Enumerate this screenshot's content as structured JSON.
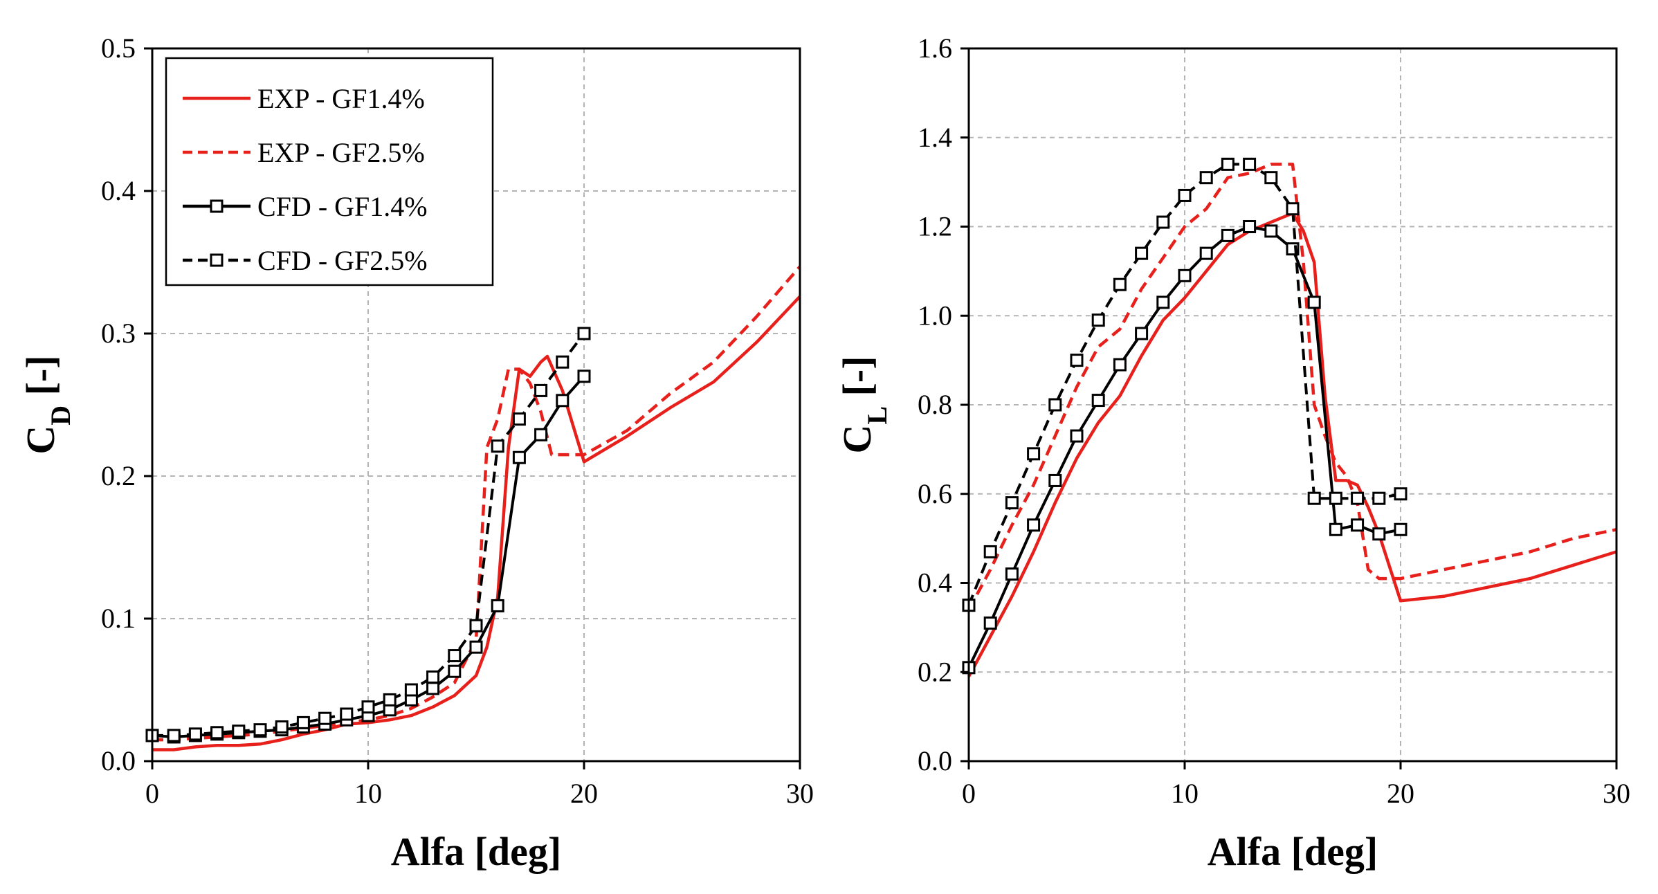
{
  "legend": {
    "entries": [
      "EXP - GF1.4%",
      "EXP - GF2.5%",
      "CFD - GF1.4%",
      "CFD - GF2.5%"
    ]
  },
  "chart_data": [
    {
      "type": "line",
      "title": "",
      "xlabel": "Alfa [deg]",
      "ylabel_main": "C",
      "ylabel_sub": "D",
      "ylabel_unit": " [-]",
      "xlim": [
        0,
        30
      ],
      "ylim": [
        0,
        0.5
      ],
      "xticks": [
        0,
        10,
        20,
        30
      ],
      "yticks": [
        0,
        0.1,
        0.2,
        0.3,
        0.4,
        0.5
      ],
      "xtick_labels": [
        "0",
        "10",
        "20",
        "30"
      ],
      "ytick_labels": [
        "0.0",
        "0.1",
        "0.2",
        "0.3",
        "0.4",
        "0.5"
      ],
      "grid": true,
      "legend_position": "top-left",
      "series": [
        {
          "name": "EXP - GF1.4%",
          "color": "#e8201c",
          "dash": "solid",
          "marker": "none",
          "x": [
            0,
            1,
            2,
            3,
            4,
            5,
            6,
            7,
            8,
            9,
            10,
            11,
            12,
            13,
            14,
            15,
            15.5,
            16,
            16.5,
            17,
            17.5,
            18,
            18.3,
            19,
            20,
            22,
            24,
            26,
            28,
            30
          ],
          "y": [
            0.008,
            0.008,
            0.01,
            0.011,
            0.011,
            0.012,
            0.015,
            0.019,
            0.022,
            0.026,
            0.027,
            0.029,
            0.032,
            0.038,
            0.046,
            0.06,
            0.08,
            0.115,
            0.22,
            0.275,
            0.27,
            0.28,
            0.284,
            0.26,
            0.21,
            0.228,
            0.248,
            0.266,
            0.294,
            0.326
          ]
        },
        {
          "name": "EXP - GF2.5%",
          "color": "#e8201c",
          "dash": "dashed",
          "marker": "none",
          "x": [
            0,
            1,
            2,
            3,
            4,
            5,
            6,
            7,
            8,
            9,
            10,
            11,
            12,
            13,
            14,
            15,
            15.5,
            16,
            16.5,
            17,
            17.5,
            18,
            18.5,
            19,
            20,
            22,
            24,
            26,
            28,
            30
          ],
          "y": [
            0.015,
            0.015,
            0.016,
            0.017,
            0.018,
            0.019,
            0.021,
            0.023,
            0.025,
            0.027,
            0.029,
            0.032,
            0.037,
            0.045,
            0.055,
            0.085,
            0.22,
            0.24,
            0.275,
            0.275,
            0.265,
            0.245,
            0.215,
            0.215,
            0.215,
            0.232,
            0.258,
            0.28,
            0.312,
            0.347
          ]
        },
        {
          "name": "CFD - GF1.4%",
          "color": "#000000",
          "dash": "solid",
          "marker": "square",
          "x": [
            0,
            1,
            2,
            3,
            4,
            5,
            6,
            7,
            8,
            9,
            10,
            11,
            12,
            13,
            14,
            15,
            16,
            17,
            18,
            19,
            20
          ],
          "y": [
            0.018,
            0.017,
            0.018,
            0.019,
            0.02,
            0.021,
            0.022,
            0.024,
            0.026,
            0.029,
            0.032,
            0.036,
            0.043,
            0.051,
            0.063,
            0.08,
            0.109,
            0.213,
            0.229,
            0.253,
            0.27
          ]
        },
        {
          "name": "CFD - GF2.5%",
          "color": "#000000",
          "dash": "dashed",
          "marker": "square",
          "x": [
            0,
            1,
            2,
            3,
            4,
            5,
            6,
            7,
            8,
            9,
            10,
            11,
            12,
            13,
            14,
            15,
            16,
            17,
            18,
            19,
            20
          ],
          "y": [
            0.018,
            0.018,
            0.019,
            0.02,
            0.021,
            0.022,
            0.024,
            0.027,
            0.03,
            0.033,
            0.038,
            0.043,
            0.05,
            0.059,
            0.074,
            0.095,
            0.221,
            0.24,
            0.26,
            0.28,
            0.3
          ]
        }
      ]
    },
    {
      "type": "line",
      "title": "",
      "xlabel": "Alfa [deg]",
      "ylabel_main": "C",
      "ylabel_sub": "L",
      "ylabel_unit": " [-]",
      "xlim": [
        0,
        30
      ],
      "ylim": [
        0,
        1.6
      ],
      "xticks": [
        0,
        10,
        20,
        30
      ],
      "yticks": [
        0,
        0.2,
        0.4,
        0.6,
        0.8,
        1.0,
        1.2,
        1.4,
        1.6
      ],
      "xtick_labels": [
        "0",
        "10",
        "20",
        "30"
      ],
      "ytick_labels": [
        "0.0",
        "0.2",
        "0.4",
        "0.6",
        "0.8",
        "1.0",
        "1.2",
        "1.4",
        "1.6"
      ],
      "grid": true,
      "legend_position": "none",
      "series": [
        {
          "name": "EXP - GF1.4%",
          "color": "#e8201c",
          "dash": "solid",
          "marker": "none",
          "x": [
            0,
            1,
            2,
            3,
            4,
            5,
            6,
            7,
            8,
            9,
            10,
            11,
            12,
            13,
            14,
            15,
            15.5,
            16,
            16.5,
            17,
            17.5,
            18,
            18.5,
            19,
            20,
            22,
            24,
            26,
            28,
            30
          ],
          "y": [
            0.19,
            0.28,
            0.37,
            0.47,
            0.58,
            0.68,
            0.76,
            0.82,
            0.91,
            0.99,
            1.04,
            1.1,
            1.16,
            1.19,
            1.21,
            1.23,
            1.19,
            1.12,
            0.82,
            0.63,
            0.63,
            0.62,
            0.57,
            0.51,
            0.36,
            0.37,
            0.39,
            0.41,
            0.44,
            0.47
          ]
        },
        {
          "name": "EXP - GF2.5%",
          "color": "#e8201c",
          "dash": "dashed",
          "marker": "none",
          "x": [
            0,
            1,
            2,
            3,
            4,
            5,
            6,
            7,
            8,
            9,
            10,
            11,
            12,
            13,
            14,
            15,
            15.5,
            16,
            16.5,
            17,
            17.5,
            18,
            18.5,
            19,
            20,
            22,
            24,
            26,
            28,
            30
          ],
          "y": [
            0.34,
            0.43,
            0.53,
            0.62,
            0.73,
            0.84,
            0.93,
            0.97,
            1.06,
            1.13,
            1.2,
            1.24,
            1.31,
            1.32,
            1.34,
            1.34,
            1.12,
            0.8,
            0.73,
            0.67,
            0.64,
            0.58,
            0.43,
            0.41,
            0.41,
            0.43,
            0.45,
            0.47,
            0.5,
            0.52
          ]
        },
        {
          "name": "CFD - GF1.4%",
          "color": "#000000",
          "dash": "solid",
          "marker": "square",
          "x": [
            0,
            1,
            2,
            3,
            4,
            5,
            6,
            7,
            8,
            9,
            10,
            11,
            12,
            13,
            14,
            15,
            16,
            17,
            18,
            19,
            20
          ],
          "y": [
            0.21,
            0.31,
            0.42,
            0.53,
            0.63,
            0.73,
            0.81,
            0.89,
            0.96,
            1.03,
            1.09,
            1.14,
            1.18,
            1.2,
            1.19,
            1.15,
            1.03,
            0.52,
            0.53,
            0.51,
            0.52
          ]
        },
        {
          "name": "CFD - GF2.5%",
          "color": "#000000",
          "dash": "dashed",
          "marker": "square",
          "x": [
            0,
            1,
            2,
            3,
            4,
            5,
            6,
            7,
            8,
            9,
            10,
            11,
            12,
            13,
            14,
            15,
            16,
            17,
            18,
            19,
            20
          ],
          "y": [
            0.35,
            0.47,
            0.58,
            0.69,
            0.8,
            0.9,
            0.99,
            1.07,
            1.14,
            1.21,
            1.27,
            1.31,
            1.34,
            1.34,
            1.31,
            1.24,
            0.59,
            0.59,
            0.59,
            0.59,
            0.6
          ]
        }
      ]
    }
  ]
}
